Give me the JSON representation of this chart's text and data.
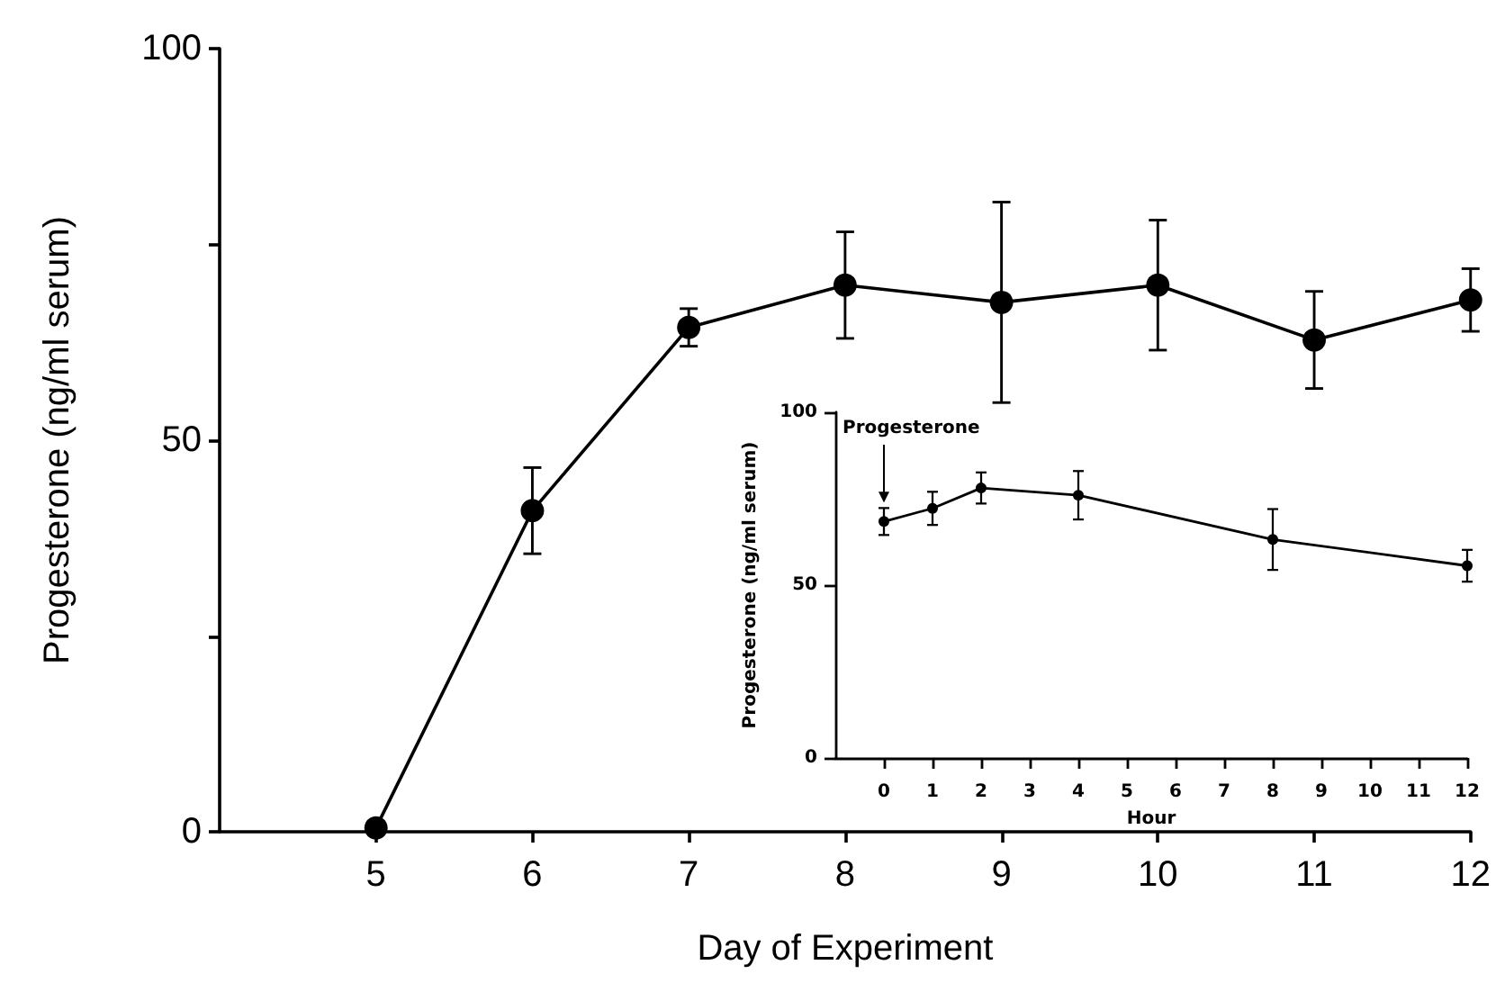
{
  "chart_data": [
    {
      "type": "line",
      "xlabel": "Day of Experiment",
      "ylabel": "Progesterone (ng/ml serum)",
      "x": [
        5,
        6,
        7,
        8,
        9,
        10,
        11,
        12
      ],
      "series": [
        {
          "color": "#000000",
          "values": [
            0.5,
            41,
            64.4,
            69.8,
            67.6,
            69.8,
            62.8,
            67.9
          ],
          "errors": [
            null,
            5.5,
            2.4,
            6.8,
            12.8,
            8.3,
            6.2,
            4
          ]
        }
      ],
      "xlim": [
        4,
        12
      ],
      "xticks": [
        5,
        6,
        7,
        8,
        9,
        10,
        11,
        12
      ],
      "ylim": [
        0,
        100
      ],
      "yticks": [
        0,
        {
          "value": 25,
          "label": null
        },
        50,
        {
          "value": 75,
          "label": null
        },
        100
      ],
      "grid": false,
      "marker": "circle",
      "line_style": "solid"
    },
    {
      "type": "line",
      "xlabel": "Hour",
      "ylabel": "Progesterone (ng/ml serum)",
      "x": [
        0,
        1,
        2,
        4,
        8,
        12
      ],
      "series": [
        {
          "color": "#000000",
          "values": [
            68.4,
            72.2,
            78.1,
            76,
            63.2,
            55.6
          ],
          "errors": [
            3.9,
            4.8,
            4.5,
            7,
            8.8,
            4.6
          ]
        }
      ],
      "xlim": [
        -1,
        12
      ],
      "xticks": [
        0,
        1,
        2,
        3,
        4,
        5,
        6,
        7,
        8,
        9,
        10,
        11,
        12
      ],
      "ylim": [
        0,
        100
      ],
      "yticks": [
        0,
        50,
        100
      ],
      "annotations": [
        "Progesterone"
      ],
      "grid": false,
      "marker": "circle",
      "line_style": "solid"
    }
  ]
}
